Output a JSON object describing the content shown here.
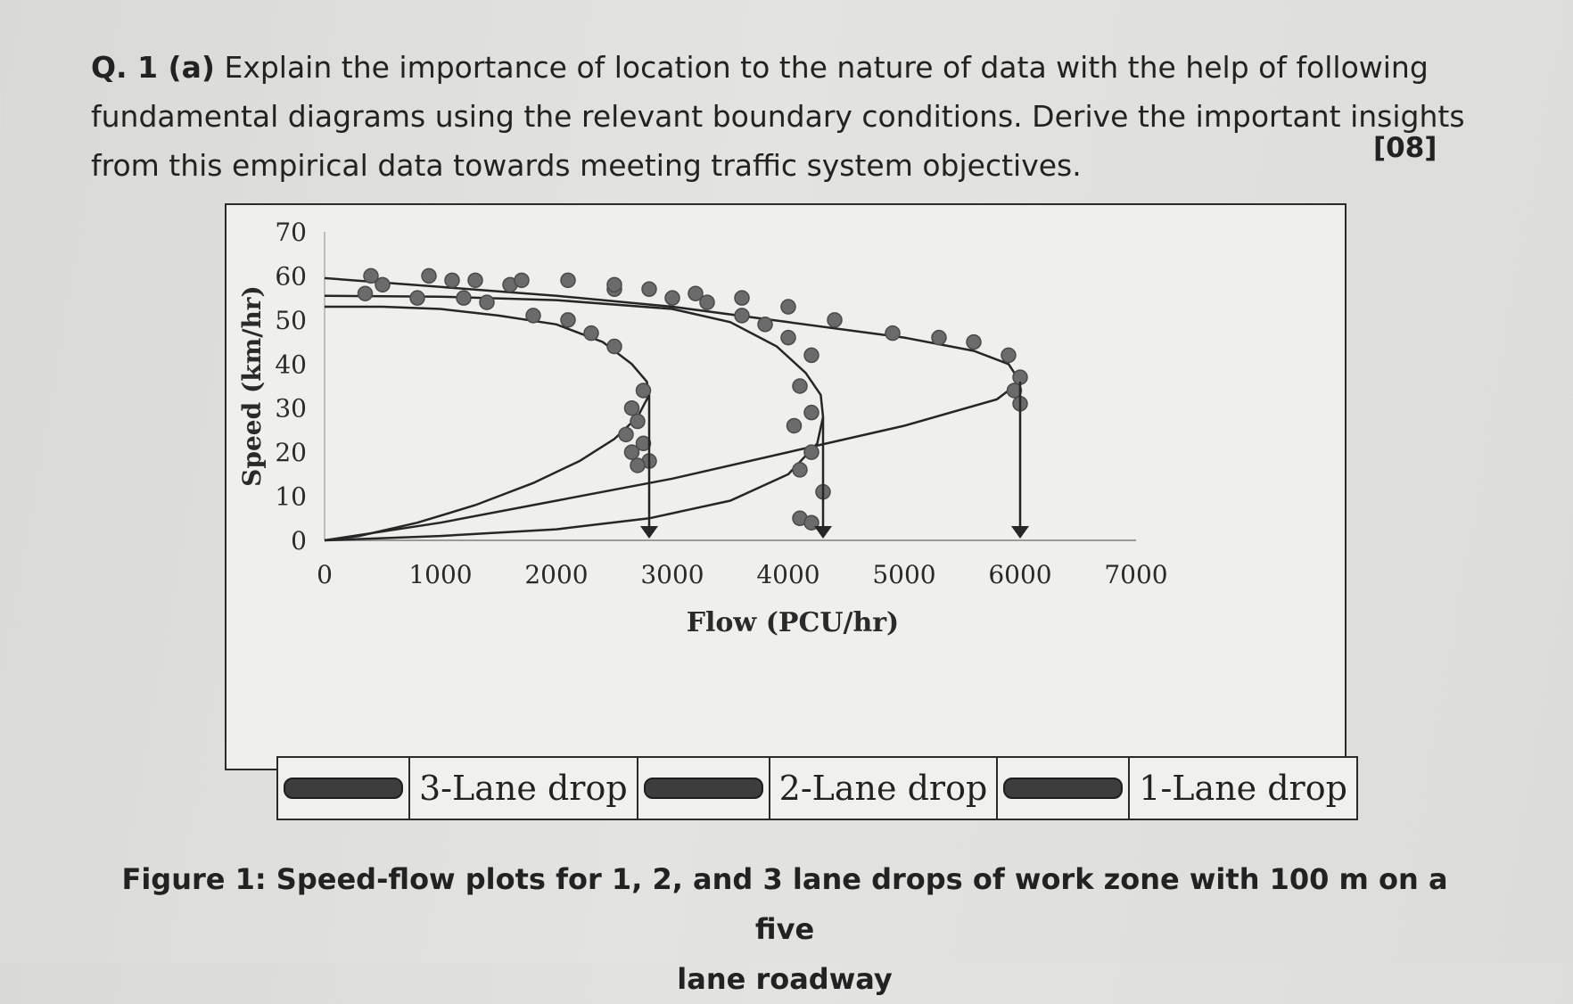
{
  "question": {
    "label": "Q. 1 (a)",
    "lines": [
      "Explain the importance of location to the nature of data with the help of following",
      "fundamental diagrams using the relevant boundary conditions. Derive the important insights",
      "from this empirical data towards meeting traffic system objectives."
    ],
    "marks": "[08]"
  },
  "chart_data": {
    "type": "scatter",
    "title": "",
    "xlabel": "Flow (PCU/hr)",
    "ylabel": "Speed (km/hr)",
    "xlim": [
      0,
      7000
    ],
    "ylim": [
      0,
      70
    ],
    "xticks": [
      0,
      1000,
      2000,
      3000,
      4000,
      5000,
      6000,
      7000
    ],
    "yticks": [
      0,
      10,
      20,
      30,
      40,
      50,
      60,
      70
    ],
    "grid": false,
    "legend_position": "bottom",
    "series": [
      {
        "name": "3-Lane drop",
        "capacity": 2800,
        "curve": {
          "upper": [
            [
              0,
              53
            ],
            [
              500,
              53
            ],
            [
              1000,
              52.5
            ],
            [
              1500,
              51
            ],
            [
              2000,
              49
            ],
            [
              2400,
              45
            ],
            [
              2650,
              40
            ],
            [
              2780,
              36
            ],
            [
              2800,
              33
            ]
          ],
          "lower": [
            [
              2800,
              33
            ],
            [
              2700,
              28
            ],
            [
              2500,
              23
            ],
            [
              2200,
              18
            ],
            [
              1800,
              13
            ],
            [
              1300,
              8
            ],
            [
              800,
              4
            ],
            [
              300,
              1
            ],
            [
              0,
              0
            ]
          ]
        },
        "points": [
          [
            350,
            56
          ],
          [
            800,
            55
          ],
          [
            1200,
            55
          ],
          [
            1400,
            54
          ],
          [
            1800,
            51
          ],
          [
            2100,
            50
          ],
          [
            2300,
            47
          ],
          [
            2500,
            44
          ],
          [
            2750,
            34
          ],
          [
            2650,
            30
          ],
          [
            2700,
            27
          ],
          [
            2600,
            24
          ],
          [
            2750,
            22
          ],
          [
            2650,
            20
          ],
          [
            2800,
            18
          ],
          [
            2700,
            17
          ]
        ]
      },
      {
        "name": "2-Lane drop",
        "capacity": 4300,
        "curve": {
          "upper": [
            [
              0,
              55.5
            ],
            [
              1000,
              55.3
            ],
            [
              2000,
              54.5
            ],
            [
              3000,
              52.5
            ],
            [
              3500,
              49.5
            ],
            [
              3900,
              44
            ],
            [
              4150,
              38
            ],
            [
              4280,
              33
            ],
            [
              4300,
              28
            ]
          ],
          "lower": [
            [
              4300,
              28
            ],
            [
              4250,
              22
            ],
            [
              4000,
              15
            ],
            [
              3500,
              9
            ],
            [
              2800,
              5
            ],
            [
              2000,
              2.5
            ],
            [
              1000,
              1
            ],
            [
              0,
              0
            ]
          ]
        },
        "points": [
          [
            500,
            58
          ],
          [
            1100,
            59
          ],
          [
            1600,
            58
          ],
          [
            2500,
            57
          ],
          [
            3000,
            55
          ],
          [
            3300,
            54
          ],
          [
            3600,
            51
          ],
          [
            3800,
            49
          ],
          [
            4000,
            46
          ],
          [
            4200,
            42
          ],
          [
            4100,
            35
          ],
          [
            4200,
            29
          ],
          [
            4050,
            26
          ],
          [
            4200,
            20
          ],
          [
            4100,
            16
          ],
          [
            4300,
            11
          ],
          [
            4100,
            5
          ],
          [
            4200,
            4
          ]
        ]
      },
      {
        "name": "1-Lane drop",
        "capacity": 6000,
        "curve": {
          "upper": [
            [
              0,
              59.5
            ],
            [
              1000,
              57.5
            ],
            [
              2000,
              55.5
            ],
            [
              3000,
              53
            ],
            [
              4000,
              49.5
            ],
            [
              5000,
              46
            ],
            [
              5600,
              43
            ],
            [
              5900,
              40
            ],
            [
              6000,
              36
            ]
          ],
          "lower": [
            [
              6000,
              36
            ],
            [
              5800,
              32
            ],
            [
              5000,
              26
            ],
            [
              4000,
              20
            ],
            [
              3000,
              14
            ],
            [
              2000,
              9
            ],
            [
              1000,
              4
            ],
            [
              0,
              0
            ]
          ]
        },
        "points": [
          [
            400,
            60
          ],
          [
            900,
            60
          ],
          [
            1300,
            59
          ],
          [
            1700,
            59
          ],
          [
            2100,
            59
          ],
          [
            2500,
            58
          ],
          [
            2800,
            57
          ],
          [
            3200,
            56
          ],
          [
            3600,
            55
          ],
          [
            4000,
            53
          ],
          [
            4400,
            50
          ],
          [
            4900,
            47
          ],
          [
            5300,
            46
          ],
          [
            5600,
            45
          ],
          [
            5900,
            42
          ],
          [
            6000,
            37
          ],
          [
            5950,
            34
          ],
          [
            6000,
            31
          ]
        ]
      }
    ]
  },
  "legend": {
    "items": [
      "3-Lane drop",
      "2-Lane drop",
      "1-Lane drop"
    ]
  },
  "caption": {
    "line1": "Figure 1: Speed-flow plots for 1, 2, and 3 lane drops of work zone with 100 m on a five",
    "line2": "lane roadway"
  }
}
